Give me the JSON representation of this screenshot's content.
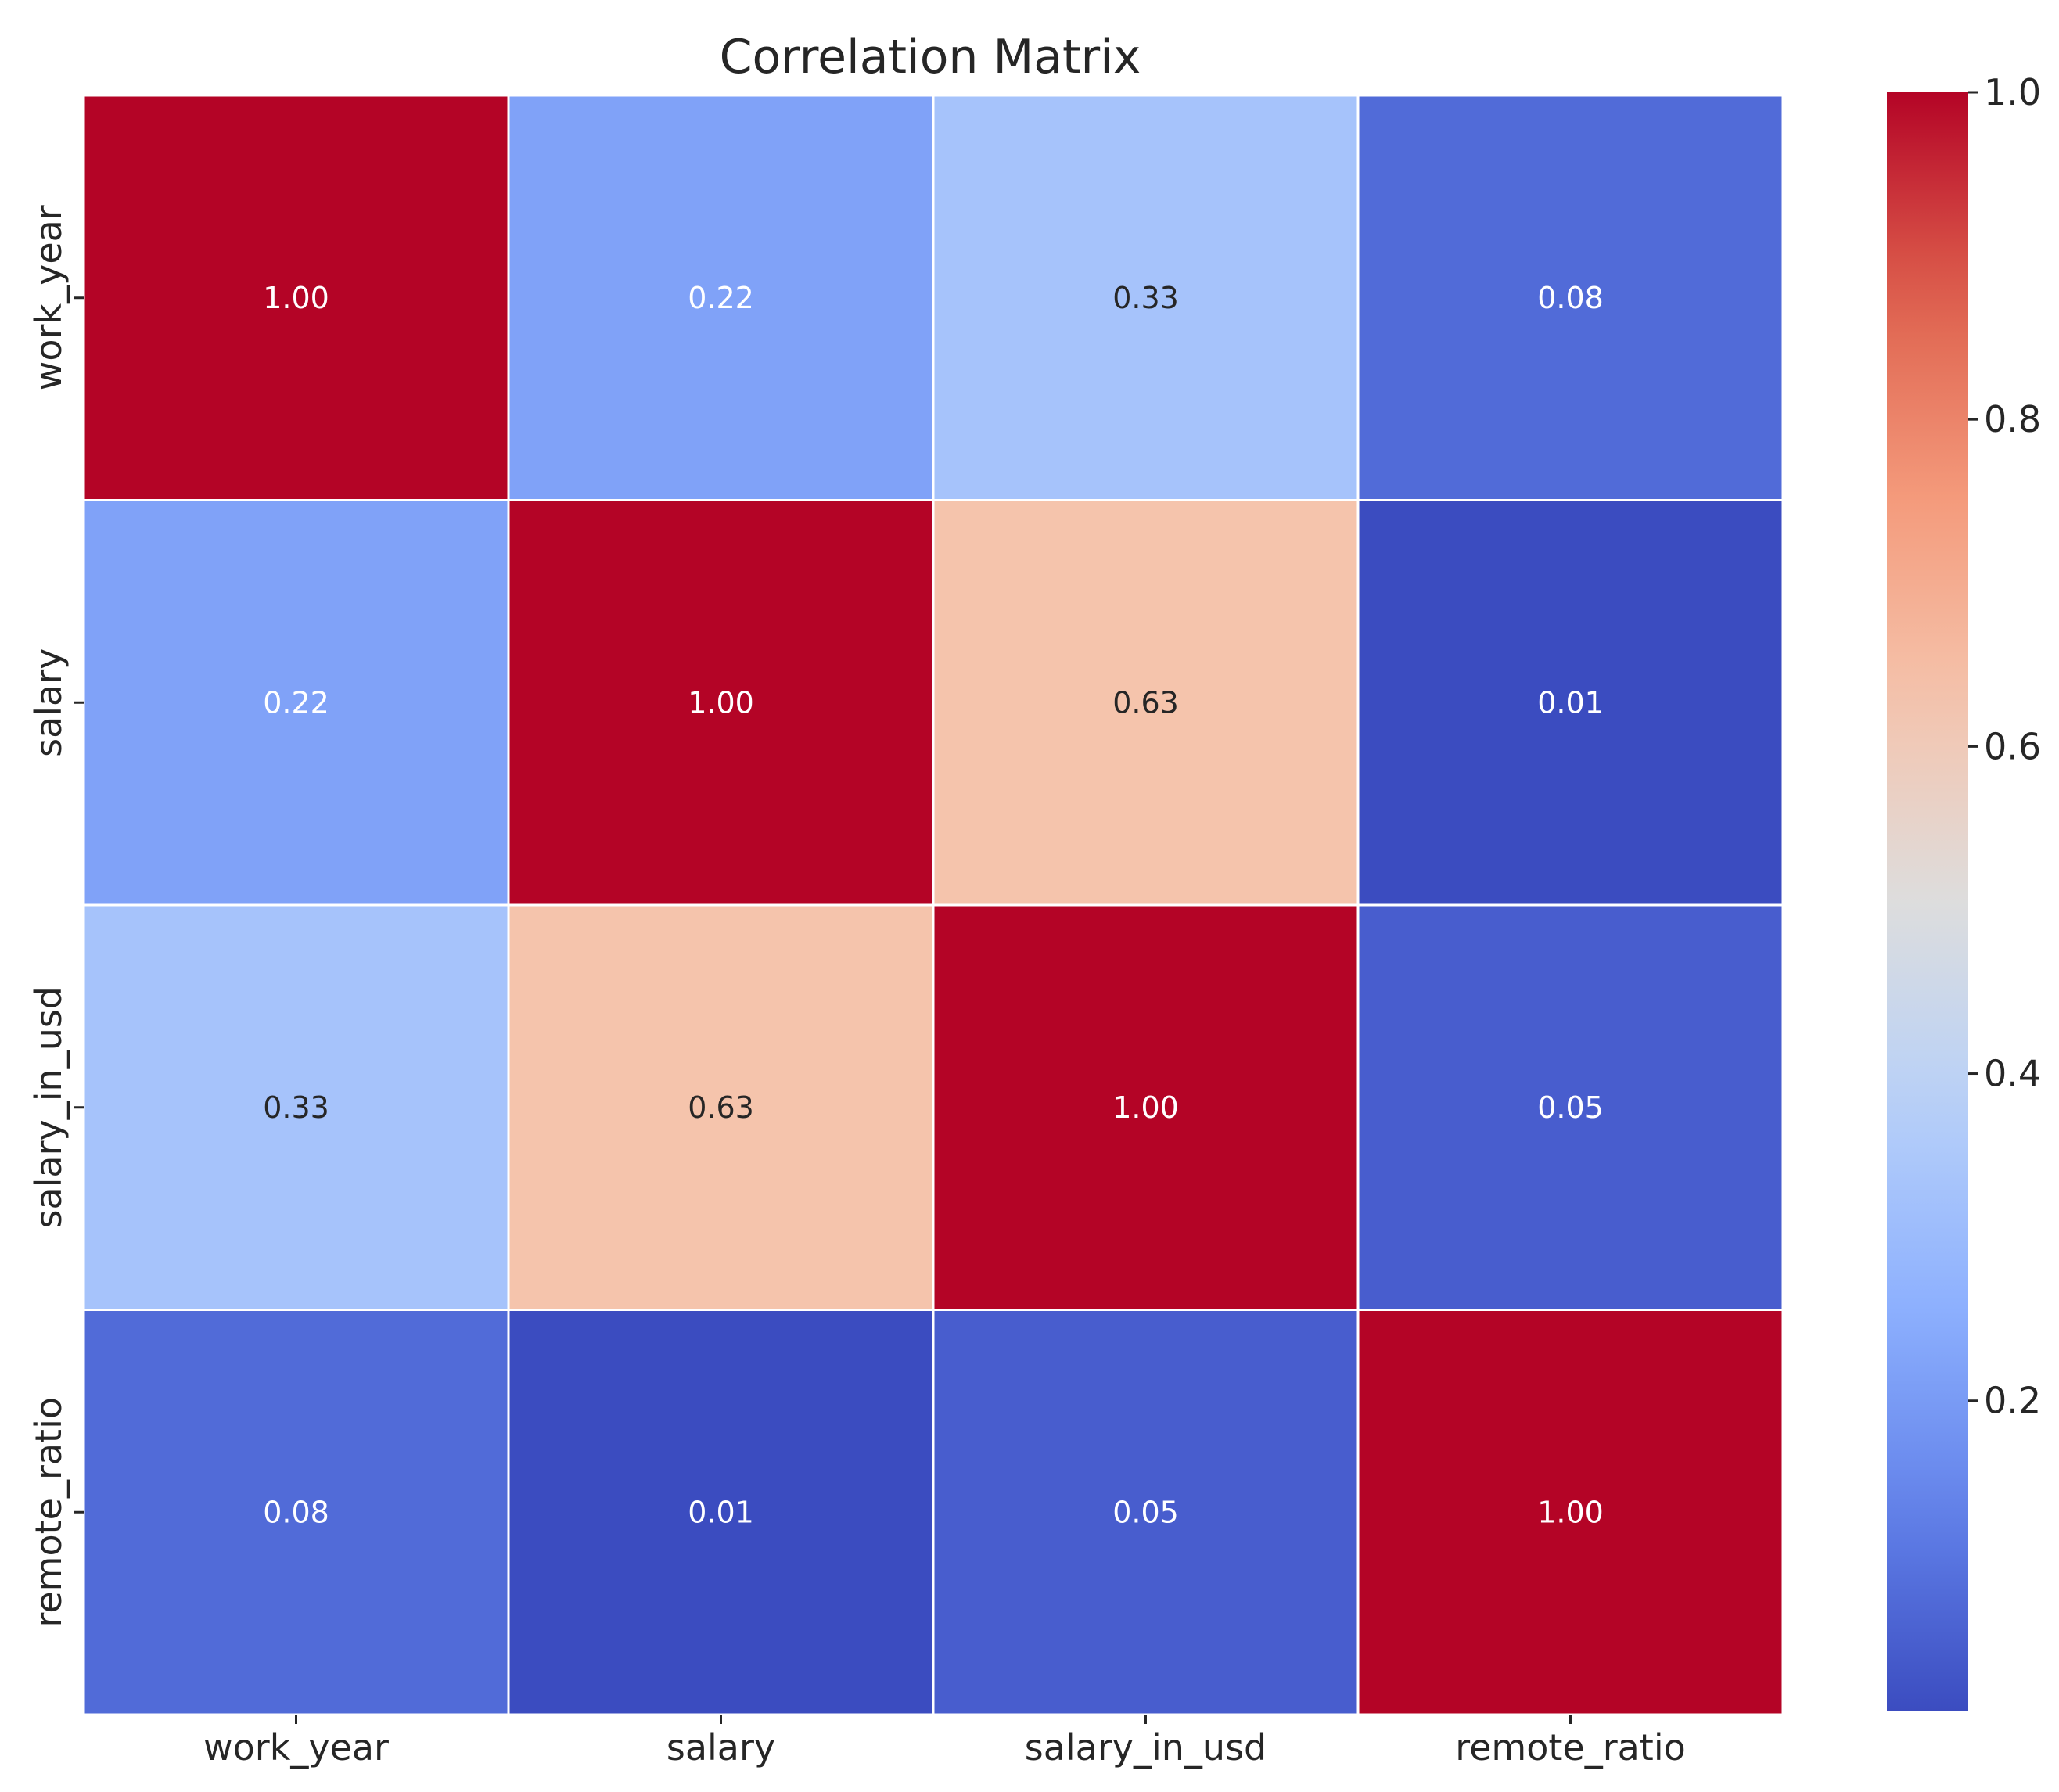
{
  "chart_data": {
    "type": "heatmap",
    "title": "Correlation Matrix",
    "xlabel": "",
    "ylabel": "",
    "x_labels": [
      "work_year",
      "salary",
      "salary_in_usd",
      "remote_ratio"
    ],
    "y_labels": [
      "work_year",
      "salary",
      "salary_in_usd",
      "remote_ratio"
    ],
    "values": [
      [
        1.0,
        0.22,
        0.33,
        0.08
      ],
      [
        0.22,
        1.0,
        0.63,
        0.01
      ],
      [
        0.33,
        0.63,
        1.0,
        0.05
      ],
      [
        0.08,
        0.01,
        0.05,
        1.0
      ]
    ],
    "annotations": [
      [
        "1.00",
        "0.22",
        "0.33",
        "0.08"
      ],
      [
        "0.22",
        "1.00",
        "0.63",
        "0.01"
      ],
      [
        "0.33",
        "0.63",
        "1.00",
        "0.05"
      ],
      [
        "0.08",
        "0.01",
        "0.05",
        "1.00"
      ]
    ],
    "colormap": "coolwarm",
    "vmin": 0.01,
    "vmax": 1.0,
    "colorbar": {
      "ticks": [
        0.2,
        0.4,
        0.6,
        0.8,
        1.0
      ],
      "tick_labels": [
        "0.2",
        "0.4",
        "0.6",
        "0.8",
        "1.0"
      ]
    },
    "grid_line_color": "#ffffff",
    "annotation_colors": {
      "light_text": "#ffffff",
      "dark_text": "#262626"
    }
  }
}
